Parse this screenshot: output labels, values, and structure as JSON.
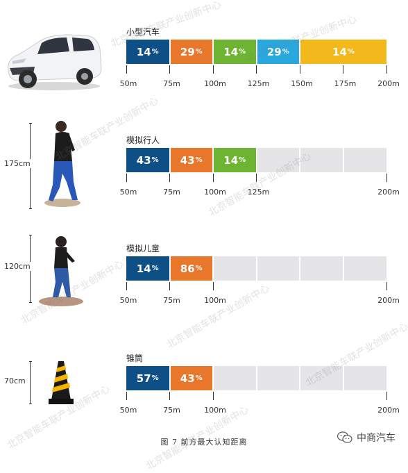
{
  "chart_data": {
    "type": "bar",
    "title": "图 7  前方最大认知距离",
    "colors": {
      "navy": "#0e4f86",
      "orange": "#e8762b",
      "green": "#6cb432",
      "cyan": "#29a8e0",
      "yellow": "#f3b81b",
      "empty": "#e5e5e7"
    },
    "panels": [
      {
        "title": "小型汽车",
        "object_height": "",
        "object_icon": "car-icon",
        "ticks": [
          "50m",
          "75m",
          "100m",
          "125m",
          "150m",
          "175m",
          "200m"
        ],
        "xlim": [
          50,
          200
        ],
        "segments": [
          {
            "from": 50,
            "to": 75,
            "value": "14",
            "unit": "%",
            "color": "navy"
          },
          {
            "from": 75,
            "to": 100,
            "value": "29",
            "unit": "%",
            "color": "orange"
          },
          {
            "from": 100,
            "to": 125,
            "value": "14",
            "unit": "%",
            "color": "green"
          },
          {
            "from": 125,
            "to": 150,
            "value": "29",
            "unit": "%",
            "color": "cyan"
          },
          {
            "from": 150,
            "to": 200,
            "value": "14",
            "unit": "%",
            "color": "yellow"
          }
        ]
      },
      {
        "title": "模拟行人",
        "object_height": "175cm",
        "object_icon": "pedestrian-icon",
        "ticks": [
          "50m",
          "75m",
          "100m",
          "125m",
          "200m"
        ],
        "xlim": [
          50,
          200
        ],
        "segments": [
          {
            "from": 50,
            "to": 75,
            "value": "43",
            "unit": "%",
            "color": "navy"
          },
          {
            "from": 75,
            "to": 100,
            "value": "43",
            "unit": "%",
            "color": "orange"
          },
          {
            "from": 100,
            "to": 125,
            "value": "14",
            "unit": "%",
            "color": "green"
          }
        ]
      },
      {
        "title": "模拟儿童",
        "object_height": "120cm",
        "object_icon": "child-icon",
        "ticks": [
          "50m",
          "75m",
          "100m",
          "200m"
        ],
        "xlim": [
          50,
          200
        ],
        "segments": [
          {
            "from": 50,
            "to": 75,
            "value": "14",
            "unit": "%",
            "color": "navy"
          },
          {
            "from": 75,
            "to": 100,
            "value": "86",
            "unit": "%",
            "color": "orange"
          }
        ]
      },
      {
        "title": "锥筒",
        "object_height": "70cm",
        "object_icon": "traffic-cone-icon",
        "ticks": [
          "50m",
          "75m",
          "100m",
          "200m"
        ],
        "xlim": [
          50,
          200
        ],
        "segments": [
          {
            "from": 50,
            "to": 75,
            "value": "57",
            "unit": "%",
            "color": "navy"
          },
          {
            "from": 75,
            "to": 100,
            "value": "43",
            "unit": "%",
            "color": "orange"
          }
        ]
      }
    ]
  },
  "watermark_text": "北京智能车联产业创新中心",
  "logo_text": "中商汽车",
  "logo_icon": "wechat-icon"
}
